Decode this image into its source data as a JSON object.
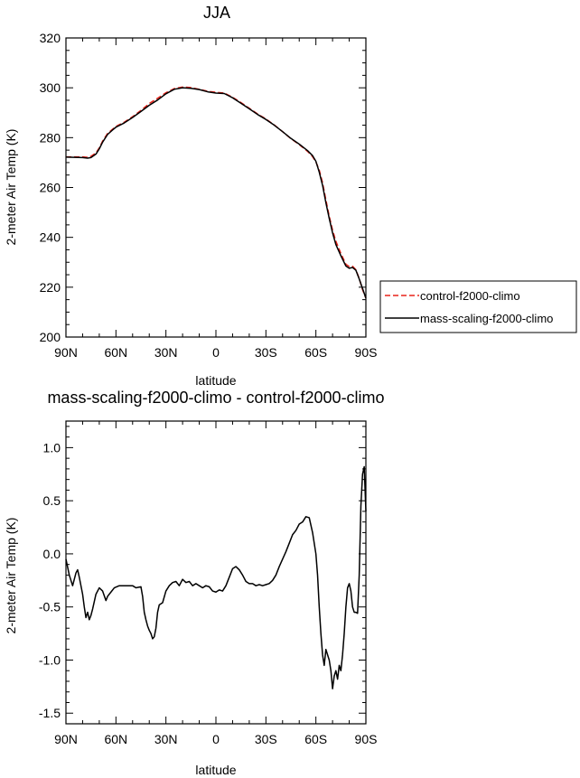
{
  "chart_data": [
    {
      "type": "line",
      "title": "JJA",
      "xlabel": "latitude",
      "ylabel": "2-meter Air Temp (K)",
      "xlim": [
        90,
        -90
      ],
      "ylim": [
        200,
        320
      ],
      "x_ticks": [
        {
          "value": 90,
          "label": "90N"
        },
        {
          "value": 60,
          "label": "60N"
        },
        {
          "value": 30,
          "label": "30N"
        },
        {
          "value": 0,
          "label": "0"
        },
        {
          "value": -30,
          "label": "30S"
        },
        {
          "value": -60,
          "label": "60S"
        },
        {
          "value": -90,
          "label": "90S"
        }
      ],
      "y_ticks": [
        200,
        220,
        240,
        260,
        280,
        300,
        320
      ],
      "legend_position": "right",
      "series": [
        {
          "name": "control-f2000-climo",
          "color": "#e8231a",
          "dashed": true,
          "x": [
            90,
            85,
            80,
            77,
            75,
            72,
            70,
            68,
            65,
            62,
            60,
            55,
            50,
            45,
            40,
            35,
            30,
            25,
            20,
            15,
            10,
            5,
            0,
            -5,
            -10,
            -15,
            -20,
            -25,
            -30,
            -35,
            -40,
            -45,
            -50,
            -55,
            -58,
            -60,
            -62,
            -64,
            -66,
            -68,
            -70,
            -72,
            -75,
            -78,
            -80,
            -82,
            -84,
            -86,
            -88,
            -90
          ],
          "values": [
            272.3,
            272.3,
            272.3,
            272.1,
            272.5,
            273.9,
            275.9,
            278.6,
            281.7,
            283.4,
            284.5,
            286.2,
            288.4,
            290.9,
            293.7,
            295.8,
            298.0,
            299.7,
            300.3,
            300.1,
            299.4,
            298.6,
            298.2,
            297.9,
            296.2,
            294.1,
            291.8,
            289.5,
            287.5,
            285.1,
            282.4,
            279.6,
            277.2,
            274.5,
            272.4,
            270.3,
            267.0,
            261.9,
            255.0,
            248.5,
            242.9,
            238.4,
            233.5,
            229.2,
            228.3,
            228.4,
            227.0,
            223.5,
            219.0,
            215.6
          ]
        },
        {
          "name": "mass-scaling-f2000-climo",
          "color": "#000000",
          "dashed": false,
          "x": [
            90,
            85,
            80,
            77,
            75,
            72,
            70,
            68,
            65,
            62,
            60,
            55,
            50,
            45,
            40,
            35,
            30,
            25,
            20,
            15,
            10,
            5,
            0,
            -5,
            -10,
            -15,
            -20,
            -25,
            -30,
            -35,
            -40,
            -45,
            -50,
            -55,
            -58,
            -60,
            -62,
            -64,
            -66,
            -68,
            -70,
            -72,
            -75,
            -78,
            -80,
            -82,
            -84,
            -86,
            -88,
            -90
          ],
          "values": [
            272.2,
            272.1,
            272.0,
            271.8,
            272.0,
            273.4,
            275.5,
            278.2,
            281.3,
            283.1,
            284.2,
            285.9,
            288.1,
            290.5,
            293.0,
            295.1,
            297.6,
            299.4,
            300.0,
            299.8,
            299.3,
            298.4,
            297.9,
            297.7,
            296.0,
            293.8,
            291.6,
            289.3,
            287.3,
            285.0,
            282.4,
            279.7,
            277.4,
            274.8,
            272.8,
            270.5,
            266.2,
            260.9,
            253.9,
            247.6,
            241.8,
            237.1,
            232.6,
            228.5,
            227.6,
            227.9,
            226.8,
            223.3,
            219.5,
            215.6
          ]
        }
      ]
    },
    {
      "type": "line",
      "title": "mass-scaling-f2000-climo - control-f2000-climo",
      "xlabel": "latitude",
      "ylabel": "2-meter Air Temp (K)",
      "xlim": [
        90,
        -90
      ],
      "ylim": [
        -1.6,
        1.25
      ],
      "x_ticks": [
        {
          "value": 90,
          "label": "90N"
        },
        {
          "value": 60,
          "label": "60N"
        },
        {
          "value": 30,
          "label": "30N"
        },
        {
          "value": 0,
          "label": "0"
        },
        {
          "value": -30,
          "label": "30S"
        },
        {
          "value": -60,
          "label": "60S"
        },
        {
          "value": -90,
          "label": "90S"
        }
      ],
      "y_ticks": [
        {
          "value": 1.0,
          "label": "1.0"
        },
        {
          "value": 0.5,
          "label": "0.5"
        },
        {
          "value": 0.0,
          "label": "0.0"
        },
        {
          "value": -0.5,
          "label": "-0.5"
        },
        {
          "value": -1.0,
          "label": "-1.0"
        },
        {
          "value": -1.5,
          "label": "-1.5"
        }
      ],
      "series": [
        {
          "color": "#000000",
          "x": [
            90,
            88,
            86,
            84,
            83,
            82,
            80,
            79,
            78,
            77,
            76,
            75,
            74,
            72,
            70,
            68,
            66,
            65,
            63,
            61,
            58,
            55,
            52,
            50,
            48,
            45,
            44,
            43,
            42,
            41,
            40,
            39,
            38,
            37,
            36,
            35,
            34,
            32,
            30,
            28,
            26,
            24,
            22,
            20,
            18,
            16,
            14,
            12,
            10,
            8,
            6,
            4,
            2,
            0,
            -2,
            -4,
            -6,
            -8,
            -10,
            -12,
            -14,
            -16,
            -18,
            -20,
            -22,
            -24,
            -26,
            -28,
            -30,
            -32,
            -34,
            -36,
            -38,
            -40,
            -42,
            -44,
            -46,
            -48,
            -50,
            -52,
            -54,
            -56,
            -58,
            -60,
            -61,
            -62,
            -63,
            -64,
            -65,
            -66,
            -67,
            -68,
            -69,
            -70,
            -71,
            -72,
            -73,
            -74,
            -75,
            -76,
            -77,
            -78,
            -79,
            -80,
            -81,
            -82,
            -83,
            -84,
            -85,
            -86,
            -87,
            -88,
            -89,
            -90
          ],
          "values": [
            -0.05,
            -0.2,
            -0.3,
            -0.18,
            -0.15,
            -0.22,
            -0.38,
            -0.5,
            -0.6,
            -0.55,
            -0.62,
            -0.58,
            -0.52,
            -0.38,
            -0.32,
            -0.35,
            -0.44,
            -0.4,
            -0.36,
            -0.32,
            -0.3,
            -0.3,
            -0.3,
            -0.3,
            -0.32,
            -0.31,
            -0.4,
            -0.55,
            -0.62,
            -0.68,
            -0.72,
            -0.75,
            -0.8,
            -0.78,
            -0.7,
            -0.55,
            -0.48,
            -0.46,
            -0.35,
            -0.3,
            -0.27,
            -0.26,
            -0.3,
            -0.24,
            -0.27,
            -0.26,
            -0.3,
            -0.28,
            -0.3,
            -0.32,
            -0.3,
            -0.31,
            -0.35,
            -0.36,
            -0.34,
            -0.35,
            -0.3,
            -0.22,
            -0.14,
            -0.12,
            -0.15,
            -0.2,
            -0.26,
            -0.28,
            -0.28,
            -0.3,
            -0.29,
            -0.3,
            -0.29,
            -0.28,
            -0.25,
            -0.2,
            -0.12,
            -0.05,
            0.02,
            0.1,
            0.18,
            0.22,
            0.28,
            0.3,
            0.35,
            0.34,
            0.2,
            0.0,
            -0.2,
            -0.5,
            -0.75,
            -0.95,
            -1.05,
            -0.9,
            -0.95,
            -1.0,
            -1.1,
            -1.27,
            -1.15,
            -1.1,
            -1.18,
            -1.05,
            -1.1,
            -0.95,
            -0.75,
            -0.5,
            -0.32,
            -0.28,
            -0.35,
            -0.5,
            -0.55,
            -0.55,
            -0.56,
            -0.2,
            0.45,
            0.75,
            0.82,
            0.4
          ]
        }
      ]
    }
  ]
}
